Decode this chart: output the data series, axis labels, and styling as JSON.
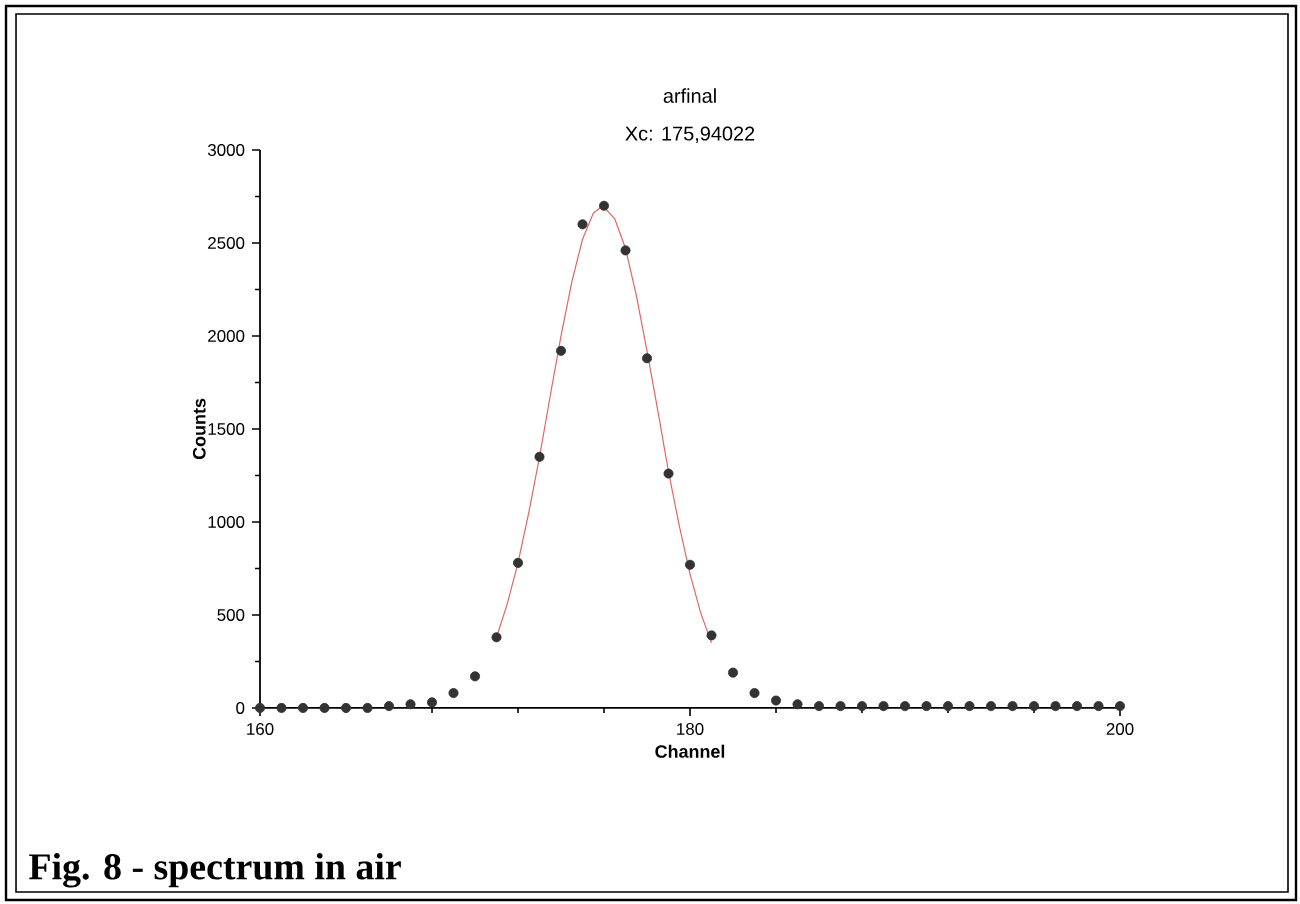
{
  "chart_data": {
    "type": "scatter",
    "title": "arfinal",
    "xlabel": "Channel",
    "ylabel": "Counts",
    "annotations": [
      "Xc: 175,94022",
      "Fig. 8 - spectrum in air"
    ],
    "xlim": [
      160,
      200
    ],
    "ylim": [
      0,
      3000
    ],
    "xticks": [
      160,
      180,
      200
    ],
    "yticks": [
      0,
      500,
      1000,
      1500,
      2000,
      2500,
      3000
    ],
    "series": [
      {
        "color": "#333333",
        "marker": "circle",
        "x": [
          160,
          161,
          162,
          163,
          164,
          165,
          166,
          167,
          168,
          169,
          170,
          171,
          172,
          173,
          174,
          175,
          176,
          177,
          178,
          179,
          180,
          181,
          182,
          183,
          184,
          185,
          186,
          187,
          188,
          189,
          190,
          191,
          192,
          193,
          194,
          195,
          196,
          197,
          198,
          199,
          200
        ],
        "values": [
          0,
          0,
          0,
          0,
          0,
          0,
          10,
          20,
          30,
          80,
          170,
          380,
          780,
          1350,
          1920,
          2600,
          2700,
          2460,
          1880,
          1260,
          770,
          390,
          190,
          80,
          40,
          20,
          10,
          10,
          10,
          10,
          10,
          10,
          10,
          10,
          10,
          10,
          10,
          10,
          10,
          10,
          10
        ]
      },
      {
        "type": "line",
        "color": "#e06666",
        "marker": "none",
        "x": [
          171,
          171.5,
          172,
          172.5,
          173,
          173.5,
          174,
          174.5,
          175,
          175.5,
          175.94,
          176.5,
          177,
          177.5,
          178,
          178.5,
          179,
          179.5,
          180,
          180.5,
          181
        ],
        "values": [
          380,
          560,
          780,
          1050,
          1350,
          1680,
          2000,
          2290,
          2520,
          2660,
          2700,
          2630,
          2470,
          2220,
          1920,
          1600,
          1270,
          980,
          720,
          510,
          350
        ]
      }
    ]
  }
}
